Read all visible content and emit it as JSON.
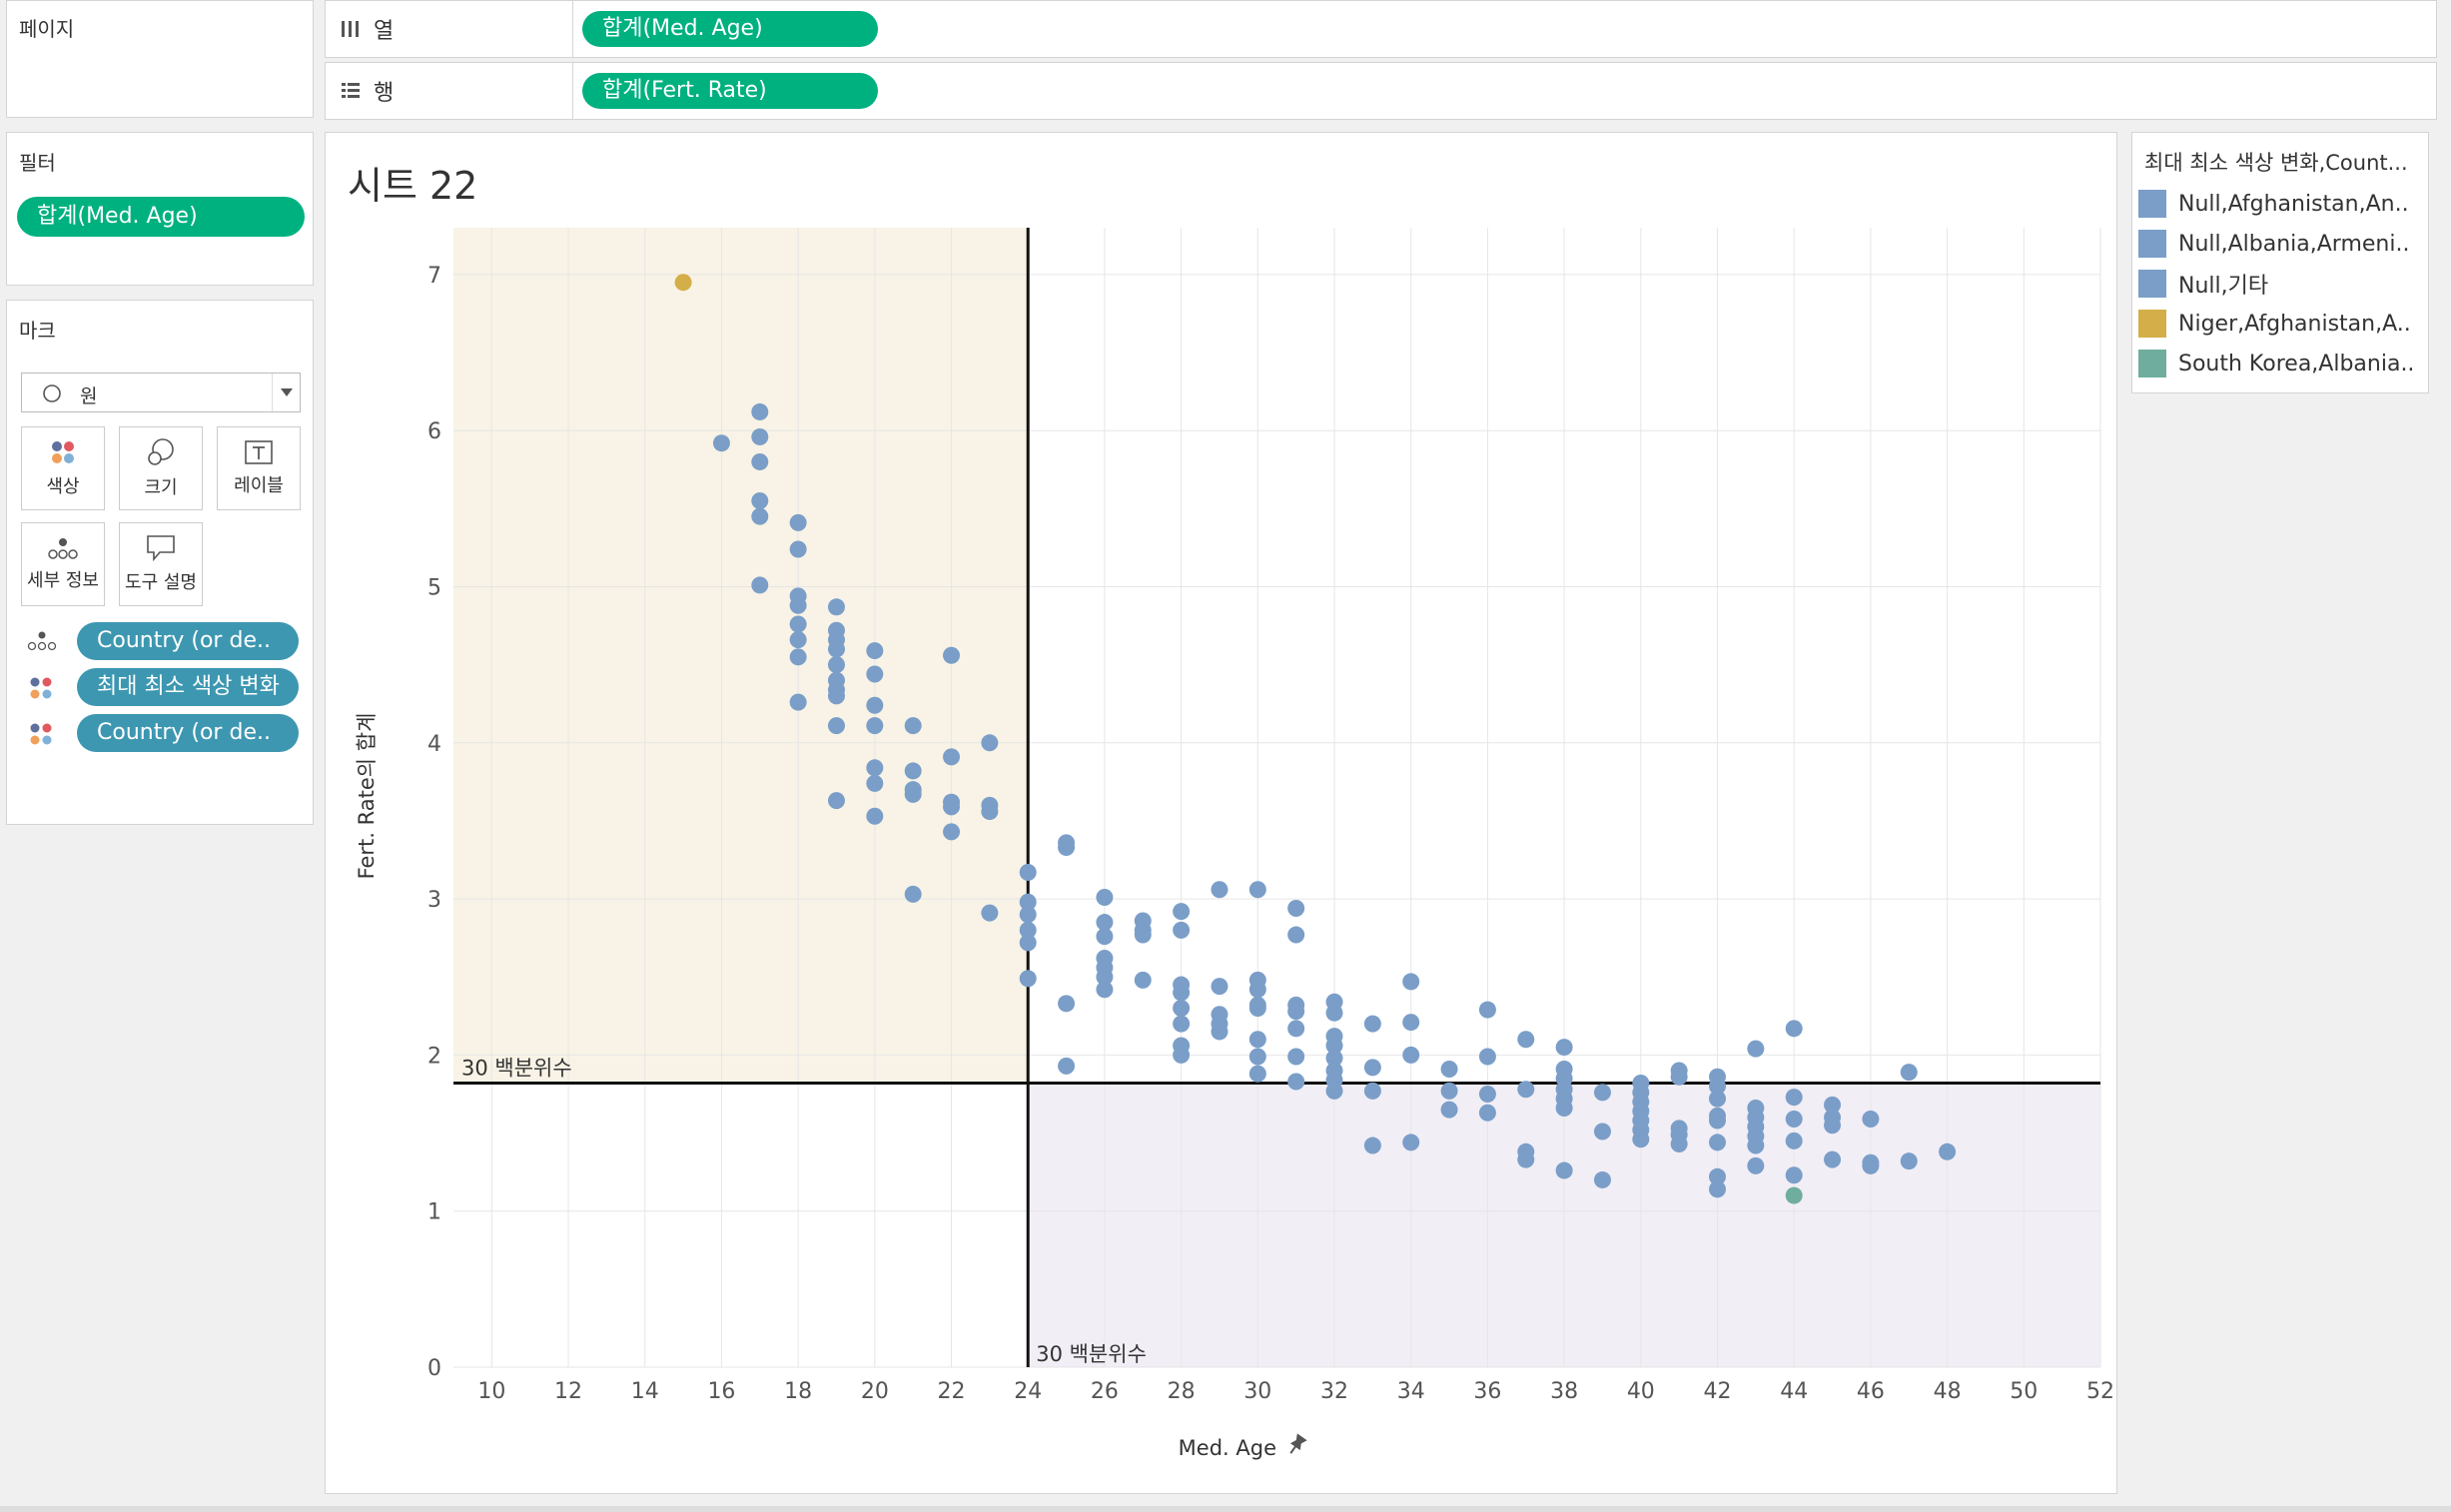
{
  "pages_shelf": {
    "title": "페이지"
  },
  "columns_shelf": {
    "label": "열",
    "pill": "합계(Med. Age)"
  },
  "rows_shelf": {
    "label": "행",
    "pill": "합계(Fert. Rate)"
  },
  "filters": {
    "title": "필터",
    "pill": "합계(Med. Age)"
  },
  "marks": {
    "title": "마크",
    "mark_type": "원",
    "buttons": {
      "color": "색상",
      "size": "크기",
      "label": "레이블",
      "detail": "세부 정보",
      "tooltip": "도구 설명"
    },
    "fields": [
      "Country (or de..",
      "최대 최소 색상 변화",
      "Country (or de.."
    ]
  },
  "sheet": {
    "title": "시트 22"
  },
  "legend": {
    "title": "최대 최소 색상 변화,Count...",
    "items": [
      {
        "label": "Null,Afghanistan,An..",
        "color": "#7a9ec8"
      },
      {
        "label": "Null,Albania,Armeni..",
        "color": "#7a9ec8"
      },
      {
        "label": "Null,기타",
        "color": "#7a9ec8"
      },
      {
        "label": "Niger,Afghanistan,A..",
        "color": "#d4ae48"
      },
      {
        "label": "South Korea,Albania..",
        "color": "#6fad9e"
      }
    ]
  },
  "chart_data": {
    "type": "scatter",
    "xlabel": "Med. Age",
    "ylabel": "Fert. Rate의 합계",
    "xlim": [
      9,
      52
    ],
    "ylim": [
      0,
      7.3
    ],
    "x_ticks": [
      10,
      12,
      14,
      16,
      18,
      20,
      22,
      24,
      26,
      28,
      30,
      32,
      34,
      36,
      38,
      40,
      42,
      44,
      46,
      48,
      50,
      52
    ],
    "y_ticks": [
      0,
      1,
      2,
      3,
      4,
      5,
      6,
      7
    ],
    "grid": true,
    "reference_lines": {
      "x": {
        "value": 24,
        "label": "30 백분위수"
      },
      "y": {
        "value": 1.82,
        "label": "30 백분위수"
      }
    },
    "quadrant_colors": {
      "top_left": "#f8f3e6",
      "bottom_right": "#f2eef6"
    },
    "colors": {
      "default": "#7a9ec8",
      "max": "#d4ae48",
      "min": "#6fad9e"
    },
    "series": [
      {
        "name": "Niger,Afghanistan,A..",
        "color": "#d4ae48",
        "points": [
          [
            15,
            6.95
          ]
        ]
      },
      {
        "name": "South Korea,Albania..",
        "color": "#6fad9e",
        "points": [
          [
            44,
            1.1
          ]
        ]
      },
      {
        "name": "Null,Afghanistan,An..",
        "color": "#7a9ec8",
        "points": [
          [
            16,
            5.92
          ],
          [
            17,
            6.12
          ],
          [
            17,
            5.96
          ],
          [
            17,
            5.8
          ],
          [
            17,
            5.55
          ],
          [
            17,
            5.45
          ],
          [
            17,
            5.01
          ],
          [
            18,
            5.41
          ],
          [
            18,
            5.24
          ],
          [
            18,
            4.94
          ],
          [
            18,
            4.88
          ],
          [
            18,
            4.76
          ],
          [
            18,
            4.66
          ],
          [
            18,
            4.55
          ],
          [
            18,
            4.26
          ],
          [
            19,
            4.87
          ],
          [
            19,
            4.72
          ],
          [
            19,
            4.66
          ],
          [
            19,
            4.6
          ],
          [
            19,
            4.5
          ],
          [
            19,
            4.4
          ],
          [
            19,
            4.34
          ],
          [
            19,
            4.3
          ],
          [
            19,
            4.11
          ],
          [
            19,
            3.63
          ],
          [
            20,
            4.59
          ],
          [
            20,
            4.44
          ],
          [
            20,
            4.24
          ],
          [
            20,
            4.11
          ],
          [
            20,
            3.84
          ],
          [
            20,
            3.74
          ],
          [
            20,
            3.53
          ],
          [
            21,
            4.11
          ],
          [
            21,
            3.82
          ],
          [
            21,
            3.7
          ],
          [
            21,
            3.67
          ],
          [
            21,
            3.03
          ],
          [
            22,
            4.56
          ],
          [
            22,
            3.91
          ],
          [
            22,
            3.62
          ],
          [
            22,
            3.59
          ],
          [
            22,
            3.43
          ],
          [
            23,
            4.0
          ],
          [
            23,
            3.6
          ],
          [
            23,
            3.56
          ],
          [
            23,
            2.91
          ],
          [
            24,
            3.17
          ],
          [
            24,
            2.98
          ],
          [
            24,
            2.9
          ],
          [
            24,
            2.8
          ],
          [
            24,
            2.72
          ],
          [
            24,
            2.49
          ],
          [
            25,
            3.36
          ],
          [
            25,
            3.33
          ],
          [
            25,
            2.33
          ],
          [
            25,
            1.93
          ],
          [
            26,
            3.01
          ],
          [
            26,
            2.85
          ],
          [
            26,
            2.76
          ],
          [
            26,
            2.62
          ],
          [
            26,
            2.56
          ],
          [
            26,
            2.5
          ],
          [
            26,
            2.42
          ],
          [
            27,
            2.86
          ],
          [
            27,
            2.8
          ],
          [
            27,
            2.77
          ],
          [
            27,
            2.48
          ],
          [
            28,
            2.92
          ],
          [
            28,
            2.8
          ],
          [
            28,
            2.45
          ],
          [
            28,
            2.4
          ],
          [
            28,
            2.3
          ],
          [
            28,
            2.2
          ],
          [
            28,
            2.06
          ],
          [
            28,
            2.0
          ],
          [
            29,
            3.06
          ],
          [
            29,
            2.44
          ],
          [
            29,
            2.26
          ],
          [
            29,
            2.2
          ],
          [
            29,
            2.15
          ],
          [
            30,
            3.06
          ],
          [
            30,
            2.48
          ],
          [
            30,
            2.42
          ],
          [
            30,
            2.32
          ],
          [
            30,
            2.3
          ],
          [
            30,
            2.1
          ],
          [
            30,
            1.99
          ],
          [
            30,
            1.88
          ],
          [
            31,
            2.94
          ],
          [
            31,
            2.77
          ],
          [
            31,
            2.32
          ],
          [
            31,
            2.28
          ],
          [
            31,
            2.17
          ],
          [
            31,
            1.99
          ],
          [
            31,
            1.83
          ],
          [
            32,
            2.34
          ],
          [
            32,
            2.27
          ],
          [
            32,
            2.12
          ],
          [
            32,
            2.06
          ],
          [
            32,
            1.98
          ],
          [
            32,
            1.9
          ],
          [
            32,
            1.84
          ],
          [
            32,
            1.77
          ],
          [
            33,
            2.2
          ],
          [
            33,
            1.92
          ],
          [
            33,
            1.77
          ],
          [
            33,
            1.42
          ],
          [
            34,
            2.47
          ],
          [
            34,
            2.21
          ],
          [
            34,
            2.0
          ],
          [
            34,
            1.44
          ],
          [
            35,
            1.91
          ],
          [
            35,
            1.77
          ],
          [
            35,
            1.65
          ],
          [
            36,
            2.29
          ],
          [
            36,
            1.99
          ],
          [
            36,
            1.75
          ],
          [
            36,
            1.63
          ],
          [
            37,
            2.1
          ],
          [
            37,
            1.78
          ],
          [
            37,
            1.38
          ],
          [
            37,
            1.33
          ],
          [
            38,
            2.05
          ],
          [
            38,
            1.91
          ],
          [
            38,
            1.85
          ],
          [
            38,
            1.78
          ],
          [
            38,
            1.72
          ],
          [
            38,
            1.66
          ],
          [
            38,
            1.26
          ],
          [
            39,
            1.76
          ],
          [
            39,
            1.51
          ],
          [
            39,
            1.2
          ],
          [
            40,
            1.82
          ],
          [
            40,
            1.76
          ],
          [
            40,
            1.7
          ],
          [
            40,
            1.64
          ],
          [
            40,
            1.58
          ],
          [
            40,
            1.52
          ],
          [
            40,
            1.46
          ],
          [
            41,
            1.9
          ],
          [
            41,
            1.86
          ],
          [
            41,
            1.53
          ],
          [
            41,
            1.49
          ],
          [
            41,
            1.43
          ],
          [
            42,
            1.86
          ],
          [
            42,
            1.8
          ],
          [
            42,
            1.72
          ],
          [
            42,
            1.61
          ],
          [
            42,
            1.58
          ],
          [
            42,
            1.44
          ],
          [
            42,
            1.22
          ],
          [
            42,
            1.14
          ],
          [
            43,
            2.04
          ],
          [
            43,
            1.66
          ],
          [
            43,
            1.6
          ],
          [
            43,
            1.54
          ],
          [
            43,
            1.48
          ],
          [
            43,
            1.42
          ],
          [
            43,
            1.29
          ],
          [
            44,
            2.17
          ],
          [
            44,
            1.73
          ],
          [
            44,
            1.59
          ],
          [
            44,
            1.45
          ],
          [
            44,
            1.23
          ],
          [
            45,
            1.68
          ],
          [
            45,
            1.6
          ],
          [
            45,
            1.55
          ],
          [
            45,
            1.33
          ],
          [
            46,
            1.59
          ],
          [
            46,
            1.31
          ],
          [
            46,
            1.29
          ],
          [
            47,
            1.89
          ],
          [
            47,
            1.32
          ],
          [
            48,
            1.38
          ]
        ]
      }
    ]
  }
}
